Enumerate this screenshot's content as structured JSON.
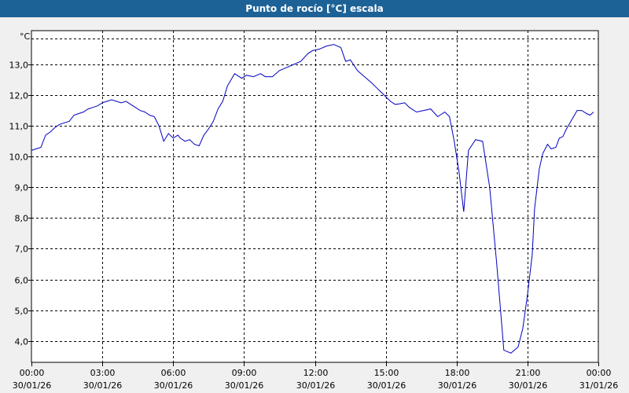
{
  "window": {
    "title": "Punto de rocío [°C] escala"
  },
  "chart_data": {
    "type": "line",
    "title": "Punto de rocío [°C] escala",
    "ylabel": "°C",
    "xlabel": "",
    "ylim": [
      3.3,
      14.1
    ],
    "xlim": [
      0,
      24
    ],
    "grid": true,
    "yticks": [
      {
        "value": 4,
        "label": "4,0"
      },
      {
        "value": 5,
        "label": "5,0"
      },
      {
        "value": 6,
        "label": "6,0"
      },
      {
        "value": 7,
        "label": "7,0"
      },
      {
        "value": 8,
        "label": "8,0"
      },
      {
        "value": 9,
        "label": "9,0"
      },
      {
        "value": 10,
        "label": "10,0"
      },
      {
        "value": 11,
        "label": "11,0"
      },
      {
        "value": 12,
        "label": "12,0"
      },
      {
        "value": 13,
        "label": "13,0"
      }
    ],
    "xticks": [
      {
        "value": 0,
        "time": "00:00",
        "date": "30/01/26"
      },
      {
        "value": 3,
        "time": "03:00",
        "date": "30/01/26"
      },
      {
        "value": 6,
        "time": "06:00",
        "date": "30/01/26"
      },
      {
        "value": 9,
        "time": "09:00",
        "date": "30/01/26"
      },
      {
        "value": 12,
        "time": "12:00",
        "date": "30/01/26"
      },
      {
        "value": 15,
        "time": "15:00",
        "date": "30/01/26"
      },
      {
        "value": 18,
        "time": "18:00",
        "date": "30/01/26"
      },
      {
        "value": 21,
        "time": "21:00",
        "date": "30/01/26"
      },
      {
        "value": 24,
        "time": "00:00",
        "date": "31/01/26"
      }
    ],
    "series": [
      {
        "color": "#0000c0",
        "x": [
          0.0,
          0.2,
          0.4,
          0.6,
          0.8,
          1.0,
          1.2,
          1.4,
          1.6,
          1.8,
          2.0,
          2.2,
          2.4,
          2.6,
          2.8,
          3.0,
          3.2,
          3.4,
          3.6,
          3.8,
          4.0,
          4.2,
          4.4,
          4.6,
          4.8,
          5.0,
          5.2,
          5.4,
          5.6,
          5.8,
          6.0,
          6.2,
          6.3,
          6.5,
          6.7,
          6.9,
          7.1,
          7.3,
          7.5,
          7.7,
          7.9,
          8.1,
          8.3,
          8.6,
          8.9,
          9.1,
          9.4,
          9.7,
          9.9,
          10.2,
          10.5,
          10.8,
          11.1,
          11.4,
          11.7,
          11.9,
          12.2,
          12.5,
          12.8,
          13.1,
          13.3,
          13.5,
          13.8,
          14.1,
          14.4,
          14.6,
          14.8,
          15.0,
          15.2,
          15.4,
          15.6,
          15.8,
          16.0,
          16.3,
          16.6,
          16.9,
          17.2,
          17.5,
          17.7,
          17.9,
          18.1,
          18.3,
          18.5,
          18.8,
          19.1,
          19.4,
          19.7,
          20.0,
          20.3,
          20.6,
          20.8,
          21.0,
          21.2,
          21.3,
          21.5,
          21.65,
          21.85,
          22.0,
          22.2,
          22.35,
          22.5,
          22.65,
          22.8,
          22.95,
          23.1,
          23.3,
          23.5,
          23.65,
          23.8
        ],
        "y": [
          10.2,
          10.25,
          10.3,
          10.7,
          10.8,
          10.95,
          11.05,
          11.1,
          11.15,
          11.35,
          11.4,
          11.45,
          11.55,
          11.6,
          11.65,
          11.75,
          11.8,
          11.85,
          11.8,
          11.75,
          11.8,
          11.7,
          11.6,
          11.5,
          11.45,
          11.35,
          11.3,
          11.0,
          10.5,
          10.75,
          10.6,
          10.7,
          10.6,
          10.5,
          10.55,
          10.4,
          10.35,
          10.7,
          10.9,
          11.15,
          11.55,
          11.8,
          12.3,
          12.7,
          12.55,
          12.65,
          12.6,
          12.7,
          12.6,
          12.6,
          12.8,
          12.9,
          13.0,
          13.1,
          13.35,
          13.45,
          13.5,
          13.6,
          13.65,
          13.55,
          13.1,
          13.15,
          12.8,
          12.6,
          12.4,
          12.25,
          12.1,
          11.95,
          11.8,
          11.7,
          11.72,
          11.75,
          11.6,
          11.45,
          11.5,
          11.55,
          11.3,
          11.45,
          11.3,
          10.5,
          9.5,
          8.2,
          10.2,
          10.55,
          10.5,
          9.0,
          6.5,
          3.7,
          3.6,
          3.8,
          4.4,
          5.5,
          6.8,
          8.3,
          9.6,
          10.1,
          10.4,
          10.25,
          10.3,
          10.6,
          10.65,
          10.9,
          11.1,
          11.3,
          11.5,
          11.5,
          11.4,
          11.35,
          11.45
        ]
      }
    ]
  }
}
